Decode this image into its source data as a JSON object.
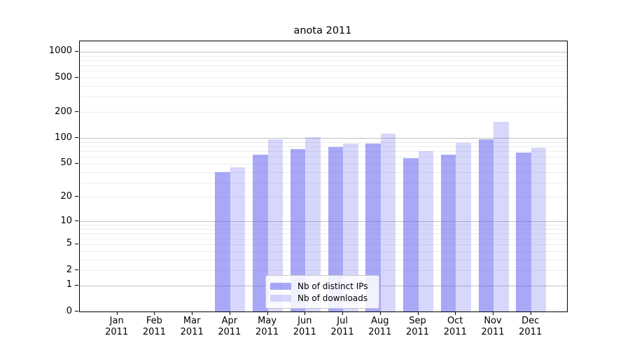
{
  "title": "anota 2011",
  "chart_data": {
    "type": "bar",
    "title": "anota 2011",
    "categories": [
      "Jan 2011",
      "Feb 2011",
      "Mar 2011",
      "Apr 2011",
      "May 2011",
      "Jun 2011",
      "Jul 2011",
      "Aug 2011",
      "Sep 2011",
      "Oct 2011",
      "Nov 2011",
      "Dec 2011"
    ],
    "series": [
      {
        "name": "Nb of distinct IPs",
        "color": "rgba(97,97,240,0.55)",
        "values": [
          0,
          0,
          0,
          40,
          64,
          74,
          79,
          87,
          58,
          64,
          97,
          67
        ]
      },
      {
        "name": "Nb of downloads",
        "color": "rgba(97,97,240,0.25)",
        "values": [
          0,
          0,
          0,
          45,
          96,
          102,
          87,
          113,
          70,
          88,
          155,
          77
        ]
      }
    ],
    "xlabel": "",
    "ylabel": "",
    "y_tick_labels": [
      "0",
      "1",
      "2",
      "5",
      "10",
      "20",
      "50",
      "100",
      "200",
      "500",
      "1000"
    ],
    "y_tick_values": [
      0,
      1,
      2,
      5,
      10,
      20,
      50,
      100,
      200,
      500,
      1000
    ],
    "y_scale": "log10(1+x)",
    "ylim": [
      0,
      1300
    ],
    "grid": true,
    "legend_position": "lower center"
  },
  "colors": {
    "bar_distinct_ips": "rgba(97,97,240,0.55)",
    "bar_downloads": "rgba(97,97,240,0.25)",
    "grid_major": "#c2c2c2",
    "grid_minor": "#ededed",
    "axis": "#000000",
    "legend_border": "#c9c9c9"
  }
}
